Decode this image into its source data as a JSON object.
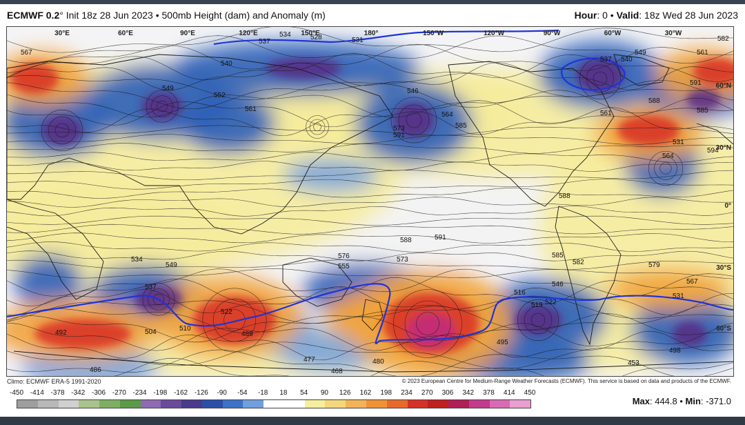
{
  "header": {
    "model": "ECMWF 0.2",
    "degree": "°",
    "init": " Init 18z 28 Jun 2023 • 500mb Height (dam) and Anomaly (m)",
    "hour_label": "Hour",
    "hour_value": ": 0 • ",
    "valid_label": "Valid",
    "valid_value": ": 18z Wed 28 Jun 2023"
  },
  "map": {
    "longitude_labels": [
      "30°E",
      "60°E",
      "90°E",
      "120°E",
      "150°E",
      "180°",
      "150°W",
      "120°W",
      "90°W",
      "60°W",
      "30°W"
    ],
    "latitude_labels": [
      "60°N",
      "30°N",
      "0°",
      "30°S",
      "60°S"
    ],
    "contour_labels": [
      "567",
      "540",
      "537",
      "534",
      "528",
      "531",
      "549",
      "552",
      "561",
      "546",
      "564",
      "573",
      "591",
      "585",
      "588",
      "537",
      "540",
      "549",
      "561",
      "588",
      "591",
      "582",
      "585",
      "594",
      "564",
      "561",
      "531",
      "534",
      "537",
      "549",
      "522",
      "510",
      "489",
      "504",
      "492",
      "486",
      "477",
      "468",
      "480",
      "555",
      "576",
      "588",
      "591",
      "573",
      "516",
      "519",
      "522",
      "546",
      "495",
      "498",
      "453",
      "531",
      "567",
      "579",
      "582",
      "585"
    ],
    "colors": {
      "deep_negative": "#5a2a82",
      "negative": "#2c5fb8",
      "light_negative": "#7aa4dc",
      "neutral": "#f3f3f3",
      "light_positive": "#f6ec9c",
      "positive": "#f2a33a",
      "strong_positive": "#d73027",
      "extreme_positive": "#c02a80",
      "land_outline": "#1a1a1a",
      "highlight_contour": "#1f33d6"
    }
  },
  "footer": {
    "climo": "Climo: ECMWF ERA-5 1991-2020",
    "copyright": "© 2023 European Centre for Medium-Range Weather Forecasts (ECMWF). This service is based on data and products of the ECMWF."
  },
  "colorbar": {
    "ticks": [
      "-450",
      "-414",
      "-378",
      "-342",
      "-306",
      "-270",
      "-234",
      "-198",
      "-162",
      "-126",
      "-90",
      "-54",
      "-18",
      "18",
      "54",
      "90",
      "126",
      "162",
      "198",
      "234",
      "270",
      "306",
      "342",
      "378",
      "414",
      "450"
    ],
    "colors": [
      "#9e9e9e",
      "#b8b8b8",
      "#d0d0d0",
      "#a8c48c",
      "#7eae64",
      "#5b9a48",
      "#8e6ab3",
      "#6b4a9c",
      "#4a3a8c",
      "#2c4fa8",
      "#3c72c8",
      "#6f9fdc",
      "#ffffff",
      "#ffffff",
      "#f7ee9c",
      "#f4d77a",
      "#f2b455",
      "#ef9236",
      "#e86a2a",
      "#d73027",
      "#c0201e",
      "#b01f55",
      "#c43a8e",
      "#d96ab4",
      "#e89fcf"
    ]
  },
  "stats": {
    "max_label": "Max",
    "max_value": ": 444.8 • ",
    "min_label": "Min",
    "min_value": ": -371.0"
  }
}
